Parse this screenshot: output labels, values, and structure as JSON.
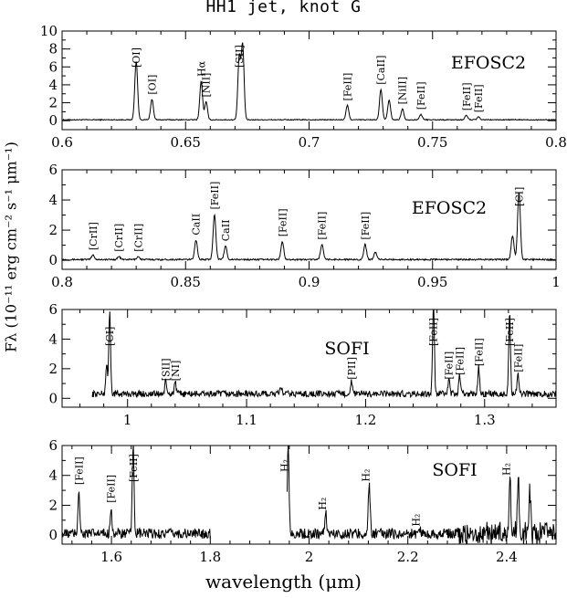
{
  "figure": {
    "title": "HH1 jet, knot G",
    "ylabel": "Fλ (10⁻¹¹ erg cm⁻² s⁻¹ μm⁻¹)",
    "xlabel": "wavelength (μm)"
  },
  "chart_data": [
    {
      "type": "line",
      "instrument_label": "EFOSC2",
      "xlim": [
        0.6,
        0.8
      ],
      "ylim": [
        -1,
        10
      ],
      "xticks": [
        0.6,
        0.65,
        0.7,
        0.75,
        0.8
      ],
      "xtick_labels": [
        "0.6",
        "0.65",
        "0.7",
        "0.75",
        "0.8"
      ],
      "yticks": [
        0,
        2,
        4,
        6,
        8,
        10
      ],
      "ytick_labels": [
        "0",
        "2",
        "4",
        "6",
        "8",
        "10"
      ],
      "continuum": 0.1,
      "lines": [
        {
          "x": 0.63,
          "y": 6.5,
          "label": "[OI]"
        },
        {
          "x": 0.6364,
          "y": 2.3,
          "label": "[OI]"
        },
        {
          "x": 0.6563,
          "y": 4.3,
          "label": "Hα"
        },
        {
          "x": 0.6583,
          "y": 2.0,
          "label": "[NII]"
        },
        {
          "x": 0.6717,
          "y": 6.9,
          "label": "[SII]"
        },
        {
          "x": 0.6731,
          "y": 8.3,
          "label": ""
        },
        {
          "x": 0.7155,
          "y": 1.6,
          "label": "[FeII]"
        },
        {
          "x": 0.7291,
          "y": 3.4,
          "label": "[CaII]"
        },
        {
          "x": 0.7324,
          "y": 2.2,
          "label": ""
        },
        {
          "x": 0.7378,
          "y": 1.2,
          "label": "[NiII]"
        },
        {
          "x": 0.7453,
          "y": 0.6,
          "label": "[FeII]"
        },
        {
          "x": 0.7637,
          "y": 0.5,
          "label": "[FeII]"
        },
        {
          "x": 0.7686,
          "y": 0.3,
          "label": "[FeII]"
        }
      ]
    },
    {
      "type": "line",
      "instrument_label": "EFOSC2",
      "xlim": [
        0.8,
        1.0
      ],
      "ylim": [
        -0.6,
        6
      ],
      "xticks": [
        0.8,
        0.85,
        0.9,
        0.95,
        1.0
      ],
      "xtick_labels": [
        "0.8",
        "0.85",
        "0.9",
        "0.95",
        "1"
      ],
      "yticks": [
        0,
        2,
        4,
        6
      ],
      "ytick_labels": [
        "0",
        "2",
        "4",
        "6"
      ],
      "continuum": 0.05,
      "lines": [
        {
          "x": 0.8125,
          "y": 0.3,
          "label": "[CrII]"
        },
        {
          "x": 0.823,
          "y": 0.2,
          "label": "[CrII]"
        },
        {
          "x": 0.8308,
          "y": 0.2,
          "label": "[CrII]"
        },
        {
          "x": 0.8542,
          "y": 1.3,
          "label": "CaII"
        },
        {
          "x": 0.8617,
          "y": 3.0,
          "label": "[FeII]"
        },
        {
          "x": 0.8662,
          "y": 0.9,
          "label": "CaII"
        },
        {
          "x": 0.8892,
          "y": 1.2,
          "label": "[FeII]"
        },
        {
          "x": 0.9052,
          "y": 1.0,
          "label": "[FeII]"
        },
        {
          "x": 0.9227,
          "y": 1.0,
          "label": "[FeII]"
        },
        {
          "x": 0.9268,
          "y": 0.5,
          "label": ""
        },
        {
          "x": 0.9824,
          "y": 1.6,
          "label": ""
        },
        {
          "x": 0.985,
          "y": 4.5,
          "label": "[CI]"
        }
      ]
    },
    {
      "type": "line",
      "instrument_label": "SOFI",
      "xlim": [
        0.945,
        1.36
      ],
      "ylim": [
        -0.6,
        6
      ],
      "xticks": [
        1.0,
        1.1,
        1.2,
        1.3
      ],
      "xtick_labels": [
        "1",
        "1.1",
        "1.2",
        "1.3"
      ],
      "yticks": [
        0,
        2,
        4,
        6
      ],
      "ytick_labels": [
        "0",
        "2",
        "4",
        "6"
      ],
      "continuum": 0.3,
      "gaps": [],
      "lines": [
        {
          "x": 0.9824,
          "y": 2.0,
          "label": ""
        },
        {
          "x": 0.985,
          "y": 5.5,
          "label": "[CI]"
        },
        {
          "x": 1.032,
          "y": 0.8,
          "label": "[SII]"
        },
        {
          "x": 1.04,
          "y": 0.8,
          "label": "[NI]"
        },
        {
          "x": 1.129,
          "y": 0.5,
          "label": ""
        },
        {
          "x": 1.188,
          "y": 0.9,
          "label": "[PII]"
        },
        {
          "x": 1.257,
          "y": 6.0,
          "label": "[FeII]"
        },
        {
          "x": 1.27,
          "y": 0.9,
          "label": "[FeII]"
        },
        {
          "x": 1.279,
          "y": 1.2,
          "label": "[FeII]"
        },
        {
          "x": 1.295,
          "y": 1.8,
          "label": "[FeII]"
        },
        {
          "x": 1.321,
          "y": 5.5,
          "label": "[FeII]"
        },
        {
          "x": 1.328,
          "y": 1.4,
          "label": "[FeII]"
        }
      ]
    },
    {
      "type": "line",
      "instrument_label": "SOFI",
      "xlim": [
        1.5,
        2.5
      ],
      "ylim": [
        -0.6,
        6
      ],
      "xticks": [
        1.6,
        1.8,
        2.0,
        2.2,
        2.4
      ],
      "xtick_labels": [
        "1.6",
        "1.8",
        "2",
        "2.2",
        "2.4"
      ],
      "yticks": [
        0,
        2,
        4,
        6
      ],
      "ytick_labels": [
        "0",
        "2",
        "4",
        "6"
      ],
      "continuum": 0.1,
      "gaps": [
        [
          1.8,
          1.955
        ]
      ],
      "lines": [
        {
          "x": 1.534,
          "y": 3.0,
          "label": "[FeII]"
        },
        {
          "x": 1.599,
          "y": 1.8,
          "label": "[FeII]"
        },
        {
          "x": 1.644,
          "y": 6.0,
          "label": "[FeII]"
        },
        {
          "x": 1.9576,
          "y": 6.0,
          "label": "H₂"
        },
        {
          "x": 2.0338,
          "y": 1.5,
          "label": "H₂"
        },
        {
          "x": 2.1218,
          "y": 3.4,
          "label": "H₂"
        },
        {
          "x": 2.2235,
          "y": 0.4,
          "label": "H₂"
        },
        {
          "x": 2.4066,
          "y": 3.8,
          "label": "H₂"
        },
        {
          "x": 2.4237,
          "y": 3.2,
          "label": ""
        },
        {
          "x": 2.447,
          "y": 2.8,
          "label": ""
        }
      ]
    }
  ]
}
